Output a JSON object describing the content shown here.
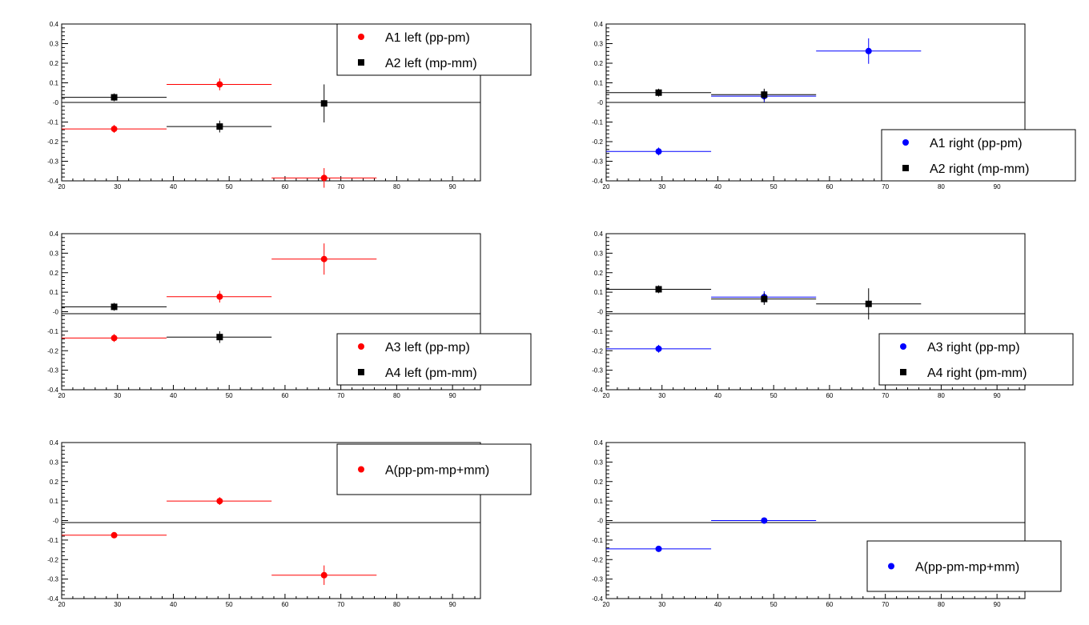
{
  "chart_data": [
    {
      "type": "scatter",
      "xlim": [
        20,
        95
      ],
      "ylim": [
        -0.4,
        0.4
      ],
      "grid": false,
      "x_ticks": [
        "20",
        "30",
        "40",
        "50",
        "60",
        "70",
        "80",
        "90"
      ],
      "y_ticks": [
        "0.4",
        "0.3",
        "0.2",
        "0.1",
        "-0",
        "-0.1",
        "-0.2",
        "-0.3",
        "-0.4"
      ],
      "zero_line": 0,
      "legend_position": "top-right",
      "series": [
        {
          "name": "A1 left (pp-pm)",
          "color": "#ff0000",
          "marker": "circle",
          "points": [
            {
              "x": 29.4,
              "y": -0.135,
              "xlo": 20.0,
              "xhi": 38.8,
              "err": 0.02
            },
            {
              "x": 48.3,
              "y": 0.092,
              "xlo": 38.8,
              "xhi": 57.6,
              "err": 0.03
            },
            {
              "x": 67.0,
              "y": -0.385,
              "xlo": 57.6,
              "xhi": 76.4,
              "err": 0.05
            }
          ]
        },
        {
          "name": "A2 left (mp-mm)",
          "color": "#000000",
          "marker": "square",
          "points": [
            {
              "x": 29.4,
              "y": 0.026,
              "xlo": 20.0,
              "xhi": 38.8,
              "err": 0.02
            },
            {
              "x": 48.3,
              "y": -0.123,
              "xlo": 38.8,
              "xhi": 57.6,
              "err": 0.03
            },
            {
              "x": 67.0,
              "y": -0.005,
              "xlo": 67.0,
              "xhi": 67.0,
              "err": 0.097
            }
          ]
        }
      ]
    },
    {
      "type": "scatter",
      "xlim": [
        20,
        95
      ],
      "ylim": [
        -0.4,
        0.4
      ],
      "grid": false,
      "x_ticks": [
        "20",
        "30",
        "40",
        "50",
        "60",
        "70",
        "80",
        "90"
      ],
      "y_ticks": [
        "0.4",
        "0.3",
        "0.2",
        "0.1",
        "-0",
        "-0.1",
        "-0.2",
        "-0.3",
        "-0.4"
      ],
      "zero_line": 0,
      "legend_position": "bottom-right",
      "series": [
        {
          "name": "A1 right (pp-pm)",
          "color": "#0000ff",
          "marker": "circle",
          "points": [
            {
              "x": 29.4,
              "y": -0.25,
              "xlo": 20.0,
              "xhi": 38.8,
              "err": 0.02
            },
            {
              "x": 48.3,
              "y": 0.032,
              "xlo": 38.8,
              "xhi": 57.6,
              "err": 0.03
            },
            {
              "x": 67.0,
              "y": 0.262,
              "xlo": 57.6,
              "xhi": 76.4,
              "err": 0.065
            }
          ]
        },
        {
          "name": "A2 right (mp-mm)",
          "color": "#000000",
          "marker": "square",
          "points": [
            {
              "x": 29.4,
              "y": 0.05,
              "xlo": 20.0,
              "xhi": 38.8,
              "err": 0.02
            },
            {
              "x": 48.3,
              "y": 0.04,
              "xlo": 38.8,
              "xhi": 57.6,
              "err": 0.03
            }
          ]
        }
      ]
    },
    {
      "type": "scatter",
      "xlim": [
        20,
        95
      ],
      "ylim": [
        -0.4,
        0.4
      ],
      "grid": false,
      "x_ticks": [
        "20",
        "30",
        "40",
        "50",
        "60",
        "70",
        "80",
        "90"
      ],
      "y_ticks": [
        "0.4",
        "0.3",
        "0.2",
        "0.1",
        "-0",
        "-0.1",
        "-0.2",
        "-0.3",
        "-0.4"
      ],
      "zero_line": -0.01,
      "legend_position": "bottom-right",
      "series": [
        {
          "name": "A3 left (pp-mp)",
          "color": "#ff0000",
          "marker": "circle",
          "points": [
            {
              "x": 29.4,
              "y": -0.135,
              "xlo": 20.0,
              "xhi": 38.8,
              "err": 0.02
            },
            {
              "x": 48.3,
              "y": 0.077,
              "xlo": 38.8,
              "xhi": 57.6,
              "err": 0.03
            },
            {
              "x": 67.0,
              "y": 0.27,
              "xlo": 57.6,
              "xhi": 76.4,
              "err": 0.08
            }
          ]
        },
        {
          "name": "A4 left (pm-mm)",
          "color": "#000000",
          "marker": "square",
          "points": [
            {
              "x": 29.4,
              "y": 0.025,
              "xlo": 20.0,
              "xhi": 38.8,
              "err": 0.02
            },
            {
              "x": 48.3,
              "y": -0.13,
              "xlo": 38.8,
              "xhi": 57.6,
              "err": 0.03
            }
          ]
        }
      ]
    },
    {
      "type": "scatter",
      "xlim": [
        20,
        95
      ],
      "ylim": [
        -0.4,
        0.4
      ],
      "grid": false,
      "x_ticks": [
        "20",
        "30",
        "40",
        "50",
        "60",
        "70",
        "80",
        "90"
      ],
      "y_ticks": [
        "0.4",
        "0.3",
        "0.2",
        "0.1",
        "-0",
        "-0.1",
        "-0.2",
        "-0.3",
        "-0.4"
      ],
      "zero_line": -0.01,
      "legend_position": "bottom-right",
      "series": [
        {
          "name": "A3 right (pp-mp)",
          "color": "#0000ff",
          "marker": "circle",
          "points": [
            {
              "x": 29.4,
              "y": -0.19,
              "xlo": 20.0,
              "xhi": 38.8,
              "err": 0.02
            },
            {
              "x": 48.3,
              "y": 0.075,
              "xlo": 38.8,
              "xhi": 57.6,
              "err": 0.03
            }
          ]
        },
        {
          "name": "A4 right (pm-mm)",
          "color": "#000000",
          "marker": "square",
          "points": [
            {
              "x": 29.4,
              "y": 0.115,
              "xlo": 20.0,
              "xhi": 38.8,
              "err": 0.02
            },
            {
              "x": 48.3,
              "y": 0.065,
              "xlo": 38.8,
              "xhi": 57.6,
              "err": 0.03
            },
            {
              "x": 67.0,
              "y": 0.04,
              "xlo": 57.6,
              "xhi": 76.4,
              "err": 0.08
            }
          ]
        }
      ]
    },
    {
      "type": "scatter",
      "xlim": [
        20,
        95
      ],
      "ylim": [
        -0.4,
        0.4
      ],
      "grid": false,
      "x_ticks": [
        "20",
        "30",
        "40",
        "50",
        "60",
        "70",
        "80",
        "90"
      ],
      "y_ticks": [
        "0.4",
        "0.3",
        "0.2",
        "0.1",
        "-0",
        "-0.1",
        "-0.2",
        "-0.3",
        "-0.4"
      ],
      "zero_line": -0.01,
      "legend_position": "top-right",
      "series": [
        {
          "name": "A(pp-pm-mp+mm)",
          "color": "#ff0000",
          "marker": "circle",
          "points": [
            {
              "x": 29.4,
              "y": -0.075,
              "xlo": 20.0,
              "xhi": 38.8,
              "err": 0.01
            },
            {
              "x": 48.3,
              "y": 0.1,
              "xlo": 38.8,
              "xhi": 57.6,
              "err": 0.02
            },
            {
              "x": 67.0,
              "y": -0.28,
              "xlo": 57.6,
              "xhi": 76.4,
              "err": 0.05
            }
          ]
        }
      ]
    },
    {
      "type": "scatter",
      "xlim": [
        20,
        95
      ],
      "ylim": [
        -0.4,
        0.4
      ],
      "grid": false,
      "x_ticks": [
        "20",
        "30",
        "40",
        "50",
        "60",
        "70",
        "80",
        "90"
      ],
      "y_ticks": [
        "0.4",
        "0.3",
        "0.2",
        "0.1",
        "-0",
        "-0.1",
        "-0.2",
        "-0.3",
        "-0.4"
      ],
      "zero_line": -0.01,
      "legend_position": "bottom-right",
      "series": [
        {
          "name": "A(pp-pm-mp+mm)",
          "color": "#0000ff",
          "marker": "circle",
          "points": [
            {
              "x": 29.4,
              "y": -0.145,
              "xlo": 20.0,
              "xhi": 38.8,
              "err": 0.01
            },
            {
              "x": 48.3,
              "y": 0.0,
              "xlo": 38.8,
              "xhi": 57.6,
              "err": 0.01
            }
          ]
        }
      ]
    }
  ]
}
